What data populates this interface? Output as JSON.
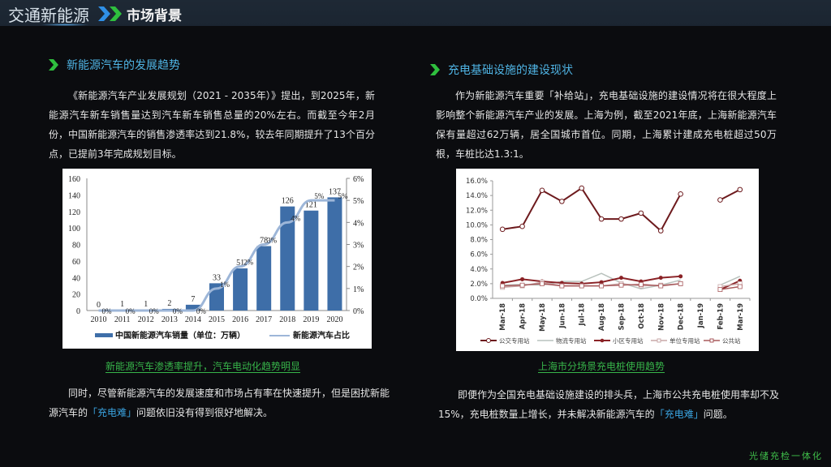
{
  "header": {
    "brand": "交通新能源",
    "section": "市场背景"
  },
  "left": {
    "heading": "新能源汽车的发展趋势",
    "paragraph": "《新能源汽车产业发展规划（2021 - 2035年）》提出，到2025年，新能源汽车新车销售量达到汽车新车销售总量的20%左右。而截至今年2月份，中国新能源汽车的销售渗透率达到21.8%，较去年同期提升了13个百分点，已提前3年完成规划目标。",
    "caption": "新能源汽车渗透率提升，汽车电动化趋势明显",
    "bottom_paragraph_pre": "同时，尽管新能源汽车的发展速度和市场占有率在快速提升，但是困扰新能源汽车的",
    "bottom_paragraph_highlight": "「充电难」",
    "bottom_paragraph_post": "问题依旧没有得到很好地解决。"
  },
  "right": {
    "heading": "充电基础设施的建设现状",
    "paragraph": "作为新能源汽车重要「补给站」，充电基础设施的建设情况将在很大程度上影响整个新能源汽车产业的发展。上海为例，截至2021年底，上海新能源汽车保有量超过62万辆，居全国城市首位。同期，上海累计建成充电桩超过50万根，车桩比达1.3:1。",
    "caption": "上海市分场景充电桩使用趋势",
    "bottom_paragraph_pre": "即便作为全国充电基础设施建设的排头兵，上海市公共充电桩使用率却不及15%，充电桩数量上增长，并未解决新能源汽车的",
    "bottom_paragraph_highlight": "「充电难」",
    "bottom_paragraph_post": "问题。"
  },
  "footer": {
    "tag": "光储充检一体化"
  },
  "colors": {
    "header_bg": "#1d2733",
    "body_bg": "#0b0c0f",
    "heading_blue": "#4fb3e3",
    "accent_green": "#37b54a",
    "highlight_blue": "#3aa3e0",
    "bar_blue": "#3e6ea8",
    "line_light_blue": "#9db6d8",
    "line_dark_red": "#7a1f22"
  },
  "chart_data": [
    {
      "type": "bar",
      "title": "",
      "categories": [
        "2010",
        "2011",
        "2012",
        "2013",
        "2014",
        "2015",
        "2016",
        "2017",
        "2018",
        "2019",
        "2020"
      ],
      "series": [
        {
          "name": "中国新能源汽车销量（单位：万辆）",
          "type": "bar",
          "axis": "left",
          "values": [
            0,
            1,
            1,
            2,
            7,
            33,
            51,
            78,
            126,
            121,
            137
          ]
        },
        {
          "name": "新能源汽车占比",
          "type": "line",
          "axis": "right",
          "values": [
            0,
            0,
            0,
            0,
            0,
            1,
            2,
            3,
            4,
            5,
            5
          ],
          "labels": [
            "0%",
            "0%",
            "0%",
            "0%",
            "0%",
            "1%",
            "2%",
            "3%",
            "4%",
            "5%",
            "5%"
          ]
        }
      ],
      "ylim_left": [
        0,
        160
      ],
      "yticks_left": [
        "0",
        "20",
        "40",
        "60",
        "80",
        "100",
        "120",
        "140",
        "160"
      ],
      "ylim_right": [
        0,
        6
      ],
      "yticks_right": [
        "0%",
        "1%",
        "2%",
        "3%",
        "4%",
        "5%",
        "6%"
      ],
      "legend": [
        "中国新能源汽车销量（单位：万辆）",
        "新能源汽车占比"
      ],
      "legend_position": "bottom"
    },
    {
      "type": "line",
      "title": "",
      "categories": [
        "Mar-18",
        "Apr-18",
        "May-18",
        "Jun-18",
        "Jul-18",
        "Aug-18",
        "Sep-18",
        "Oct-18",
        "Nov-18",
        "Dec-18",
        "Jan-19",
        "Feb-19",
        "Mar-19"
      ],
      "series": [
        {
          "name": "公交专用站",
          "values": [
            9.4,
            9.8,
            14.7,
            13.2,
            15.0,
            10.8,
            10.8,
            11.6,
            9.2,
            14.2,
            null,
            13.4,
            14.8
          ]
        },
        {
          "name": "物流专用站",
          "values": [
            1.8,
            1.9,
            1.8,
            2.3,
            2.3,
            3.4,
            2.1,
            1.3,
            1.8,
            2.5,
            null,
            1.8,
            3.0
          ]
        },
        {
          "name": "小区专用站",
          "values": [
            2.1,
            2.6,
            2.3,
            2.1,
            2.0,
            2.2,
            2.8,
            2.3,
            2.8,
            3.0,
            null,
            1.2,
            2.4
          ]
        },
        {
          "name": "单位专用站",
          "values": [
            1.5,
            1.7,
            2.2,
            1.7,
            1.7,
            1.7,
            2.0,
            1.7,
            1.8,
            2.0,
            null,
            1.6,
            2.0
          ]
        },
        {
          "name": "公共站",
          "values": [
            1.7,
            1.8,
            2.0,
            1.7,
            1.7,
            1.7,
            1.8,
            1.9,
            1.7,
            2.0,
            null,
            1.2,
            1.6
          ]
        }
      ],
      "ylim": [
        0,
        16
      ],
      "yticks": [
        "0.0%",
        "2.0%",
        "4.0%",
        "6.0%",
        "8.0%",
        "10.0%",
        "12.0%",
        "14.0%",
        "16.0%"
      ],
      "legend": [
        "公交专用站",
        "物流专用站",
        "小区专用站",
        "单位专用站",
        "公共站"
      ],
      "legend_position": "bottom"
    }
  ]
}
